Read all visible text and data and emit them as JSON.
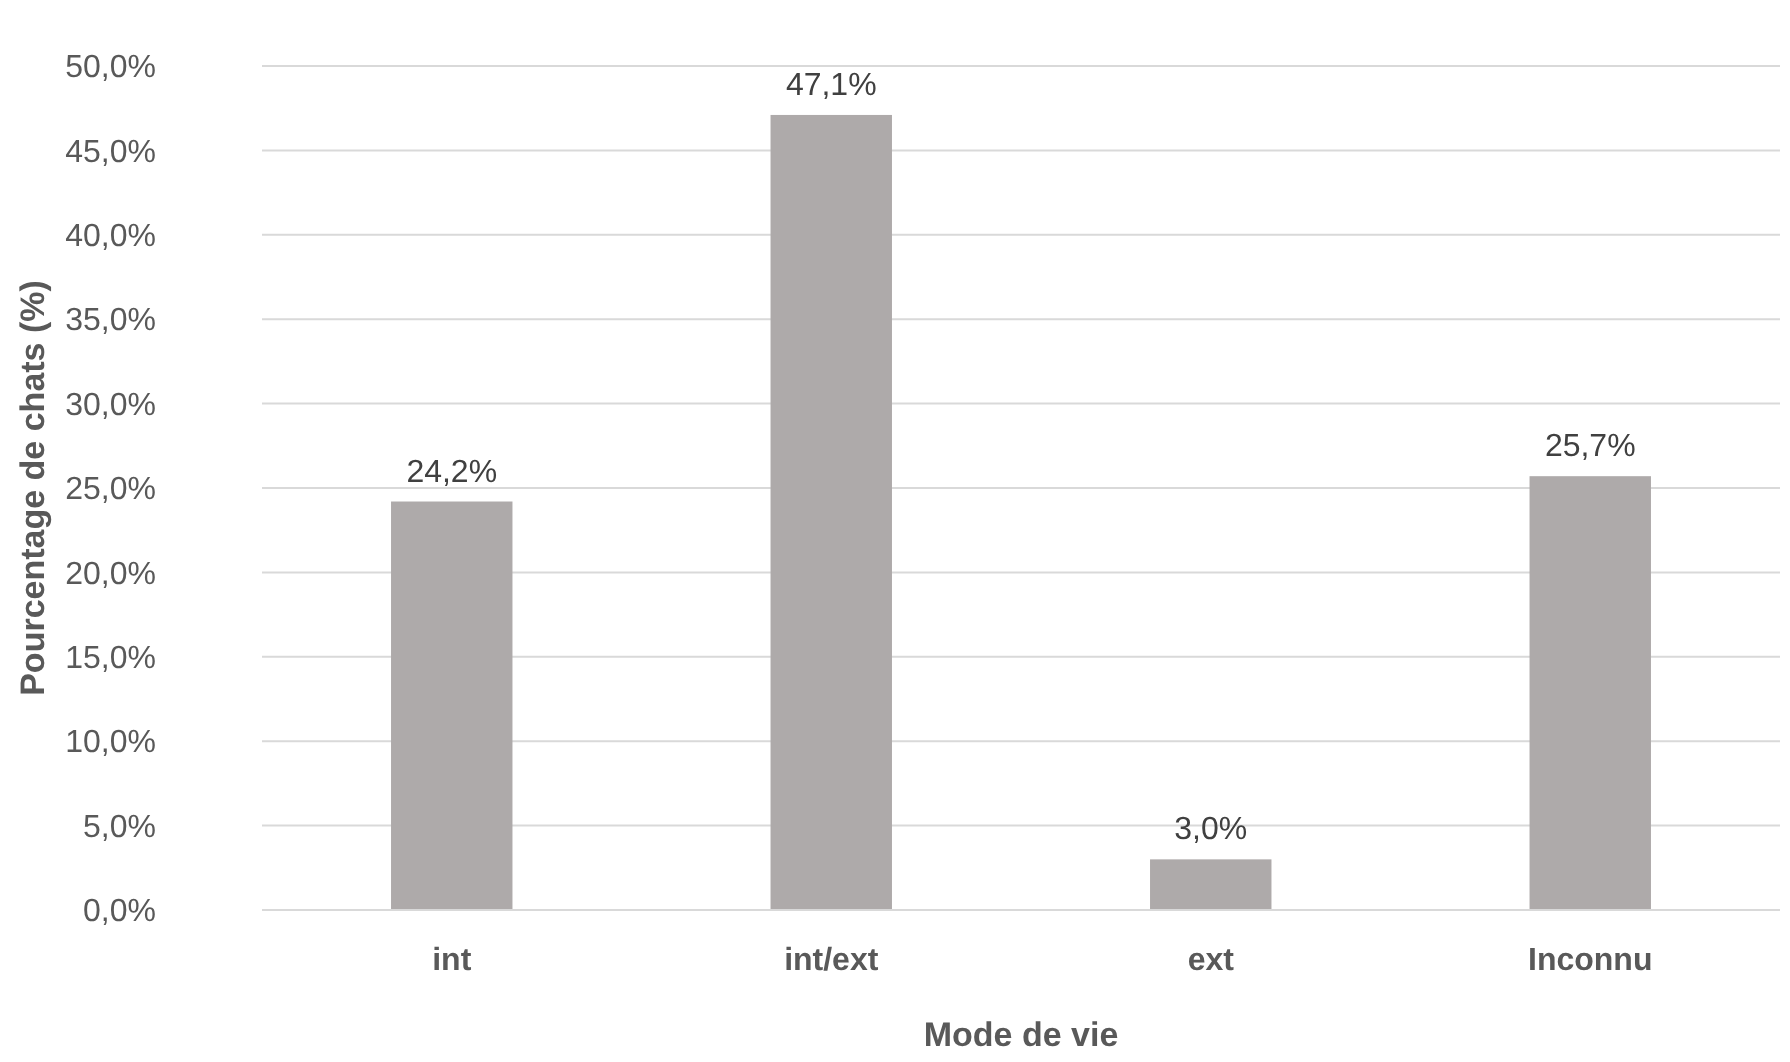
{
  "chart_data": {
    "type": "bar",
    "xlabel": "Mode de vie",
    "ylabel": "Pourcentage de chats (%)",
    "categories": [
      "int",
      "int/ext",
      "ext",
      "Inconnu"
    ],
    "values": [
      24.2,
      47.1,
      3.0,
      25.7
    ],
    "value_labels": [
      "24,2%",
      "47,1%",
      "3,0%",
      "25,7%"
    ],
    "color": "#aeaaaa",
    "ylim": [
      0,
      50
    ],
    "yticks": [
      {
        "value": 0,
        "label": "0,0%"
      },
      {
        "value": 5,
        "label": "5,0%"
      },
      {
        "value": 10,
        "label": "10,0%"
      },
      {
        "value": 15,
        "label": "15,0%"
      },
      {
        "value": 20,
        "label": "20,0%"
      },
      {
        "value": 25,
        "label": "25,0%"
      },
      {
        "value": 30,
        "label": "30,0%"
      },
      {
        "value": 35,
        "label": "35,0%"
      },
      {
        "value": 40,
        "label": "40,0%"
      },
      {
        "value": 45,
        "label": "45,0%"
      },
      {
        "value": 50,
        "label": "50,0%"
      }
    ],
    "grid": "y"
  }
}
